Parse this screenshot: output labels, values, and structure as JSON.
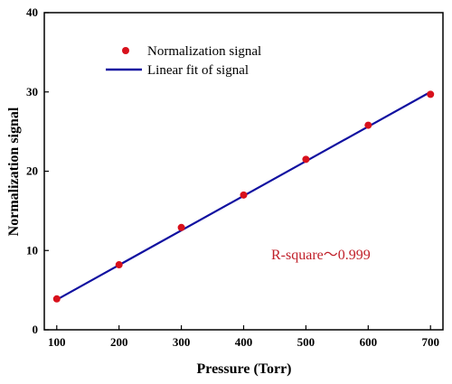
{
  "chart_data": {
    "type": "scatter",
    "title": "",
    "xlabel": "Pressure (Torr)",
    "ylabel": "Normalization signal",
    "xlim": [
      80,
      720
    ],
    "ylim": [
      0,
      40
    ],
    "xticks": [
      100,
      200,
      300,
      400,
      500,
      600,
      700
    ],
    "yticks": [
      0,
      10,
      20,
      30,
      40
    ],
    "grid": false,
    "legend_position": "top-left",
    "series": [
      {
        "name": "Normalization signal",
        "kind": "scatter",
        "color": "#d8111c",
        "x": [
          100,
          200,
          300,
          400,
          500,
          600,
          700
        ],
        "y": [
          3.9,
          8.2,
          12.9,
          17.0,
          21.5,
          25.8,
          29.7
        ]
      },
      {
        "name": "Linear fit of signal",
        "kind": "line",
        "color": "#1010a0",
        "x": [
          100,
          700
        ],
        "y": [
          3.8,
          30.0
        ]
      }
    ],
    "annotations": [
      {
        "text": "R-square～0.999",
        "x": 520,
        "y": 9,
        "color": "#c0202a"
      }
    ]
  }
}
